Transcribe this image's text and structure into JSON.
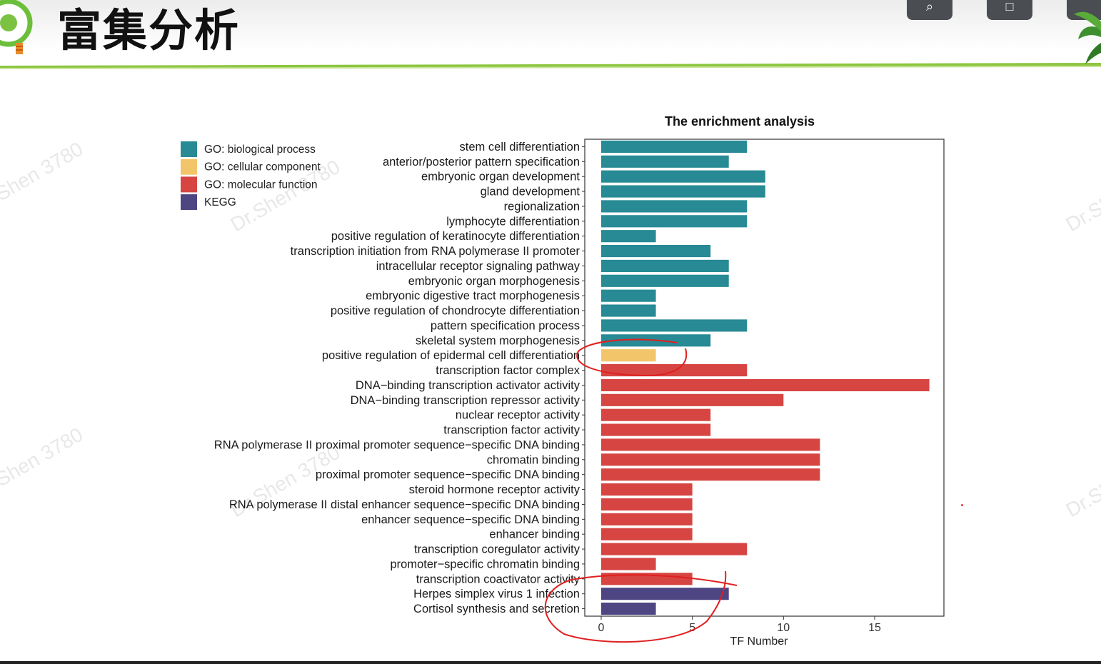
{
  "slide": {
    "title": "富集分析"
  },
  "controls": [
    {
      "name": "zoom-button",
      "icon": "zoom-icon"
    },
    {
      "name": "window-button",
      "icon": "window-icon"
    }
  ],
  "chart_data": {
    "type": "bar",
    "orientation": "horizontal",
    "title": "The enrichment analysis",
    "xlabel": "TF Number",
    "ylabel": "",
    "xlim": [
      -0.9,
      18.8
    ],
    "xticks": [
      0,
      5,
      10,
      15
    ],
    "grid": false,
    "legend_position": "top-left",
    "legend": [
      {
        "label": "GO: biological process",
        "color": "#278a94"
      },
      {
        "label": "GO: cellular component",
        "color": "#f3c56b"
      },
      {
        "label": "GO: molecular function",
        "color": "#d64542"
      },
      {
        "label": "KEGG",
        "color": "#4e4682"
      }
    ],
    "bars": [
      {
        "label": "stem cell differentiation",
        "value": 8,
        "group": 0
      },
      {
        "label": "anterior/posterior pattern specification",
        "value": 7,
        "group": 0
      },
      {
        "label": "embryonic organ development",
        "value": 9,
        "group": 0
      },
      {
        "label": "gland development",
        "value": 9,
        "group": 0
      },
      {
        "label": "regionalization",
        "value": 8,
        "group": 0
      },
      {
        "label": "lymphocyte differentiation",
        "value": 8,
        "group": 0
      },
      {
        "label": "positive regulation of keratinocyte differentiation",
        "value": 3,
        "group": 0
      },
      {
        "label": "transcription initiation from RNA polymerase II promoter",
        "value": 6,
        "group": 0
      },
      {
        "label": "intracellular receptor signaling pathway",
        "value": 7,
        "group": 0
      },
      {
        "label": "embryonic organ morphogenesis",
        "value": 7,
        "group": 0
      },
      {
        "label": "embryonic digestive tract morphogenesis",
        "value": 3,
        "group": 0
      },
      {
        "label": "positive regulation of chondrocyte differentiation",
        "value": 3,
        "group": 0
      },
      {
        "label": "pattern specification process",
        "value": 8,
        "group": 0
      },
      {
        "label": "skeletal system morphogenesis",
        "value": 6,
        "group": 0
      },
      {
        "label": "positive regulation of epidermal cell differentiation",
        "value": 3,
        "group": 1
      },
      {
        "label": "transcription factor complex",
        "value": 8,
        "group": 2
      },
      {
        "label": "DNA−binding transcription activator activity",
        "value": 18,
        "group": 2
      },
      {
        "label": "DNA−binding transcription repressor activity",
        "value": 10,
        "group": 2
      },
      {
        "label": "nuclear receptor activity",
        "value": 6,
        "group": 2
      },
      {
        "label": "transcription factor activity",
        "value": 6,
        "group": 2
      },
      {
        "label": "RNA polymerase II proximal promoter sequence−specific DNA binding",
        "value": 12,
        "group": 2
      },
      {
        "label": "chromatin binding",
        "value": 12,
        "group": 2
      },
      {
        "label": "proximal promoter sequence−specific DNA binding",
        "value": 12,
        "group": 2
      },
      {
        "label": "steroid hormone receptor activity",
        "value": 5,
        "group": 2
      },
      {
        "label": "RNA polymerase II distal enhancer sequence−specific DNA binding",
        "value": 5,
        "group": 2
      },
      {
        "label": "enhancer sequence−specific DNA binding",
        "value": 5,
        "group": 2
      },
      {
        "label": "enhancer binding",
        "value": 5,
        "group": 2
      },
      {
        "label": "transcription coregulator activity",
        "value": 8,
        "group": 2
      },
      {
        "label": "promoter−specific chromatin binding",
        "value": 3,
        "group": 2
      },
      {
        "label": "transcription coactivator activity",
        "value": 5,
        "group": 2
      },
      {
        "label": "Herpes simplex virus 1 infection",
        "value": 7,
        "group": 3
      },
      {
        "label": "Cortisol synthesis and secretion",
        "value": 3,
        "group": 3
      }
    ],
    "watermark": "Dr.Shen 3780",
    "annotation_color": "#e02020"
  }
}
